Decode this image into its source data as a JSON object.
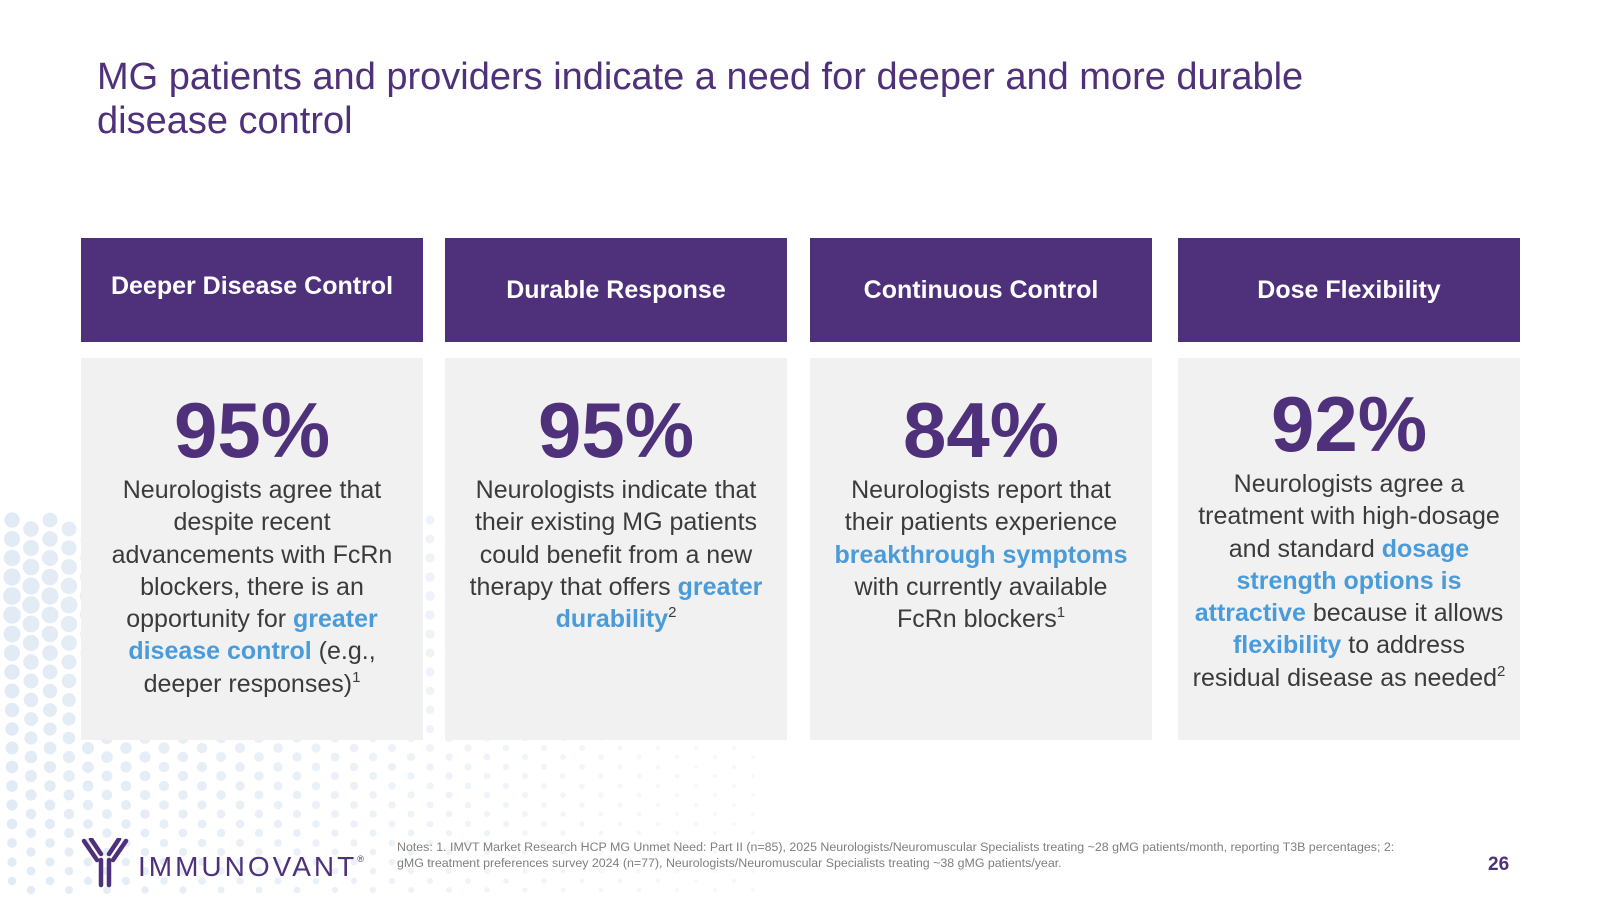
{
  "slide": {
    "title": "MG patients and providers indicate a need for deeper and more durable disease control",
    "page_number": "26"
  },
  "colors": {
    "brand_purple": "#4f307a",
    "highlight_blue": "#4a9bd9",
    "card_background": "#f1f1f1",
    "body_text": "#3b3b3b"
  },
  "cards": [
    {
      "heading": "Deeper Disease Control",
      "percent": "95%",
      "text_1": "Neurologists agree that despite recent advancements with FcRn blockers, there is an opportunity for ",
      "hl_1": "greater disease control",
      "text_2": " (e.g., deeper responses)",
      "sup": "1"
    },
    {
      "heading": "Durable Response",
      "percent": "95%",
      "text_1": "Neurologists indicate that their existing MG patients could benefit from a new therapy that offers ",
      "hl_1": "greater durability",
      "sup": "2"
    },
    {
      "heading": "Continuous Control",
      "percent": "84%",
      "text_1": "Neurologists report that their patients experience ",
      "hl_1": "breakthrough symptoms",
      "text_2": " with currently available FcRn blockers",
      "sup": "1"
    },
    {
      "heading": "Dose Flexibility",
      "percent": "92%",
      "text_1": "Neurologists agree a treatment with high-dosage and standard ",
      "hl_1": "dosage strength options is attractive",
      "text_2": " because it allows ",
      "hl_2": "flexibility",
      "text_3": " to address residual disease as needed",
      "sup": "2"
    }
  ],
  "footer": {
    "logo_text": "IMMUNOVANT",
    "logo_mark": "®",
    "notes": "Notes: 1. IMVT Market Research HCP MG Unmet Need: Part II (n=85), 2025 Neurologists/Neuromuscular Specialists treating ~28 gMG patients/month, reporting T3B percentages; 2: gMG treatment preferences survey 2024 (n=77), Neurologists/Neuromuscular Specialists treating ~38 gMG patients/year."
  }
}
